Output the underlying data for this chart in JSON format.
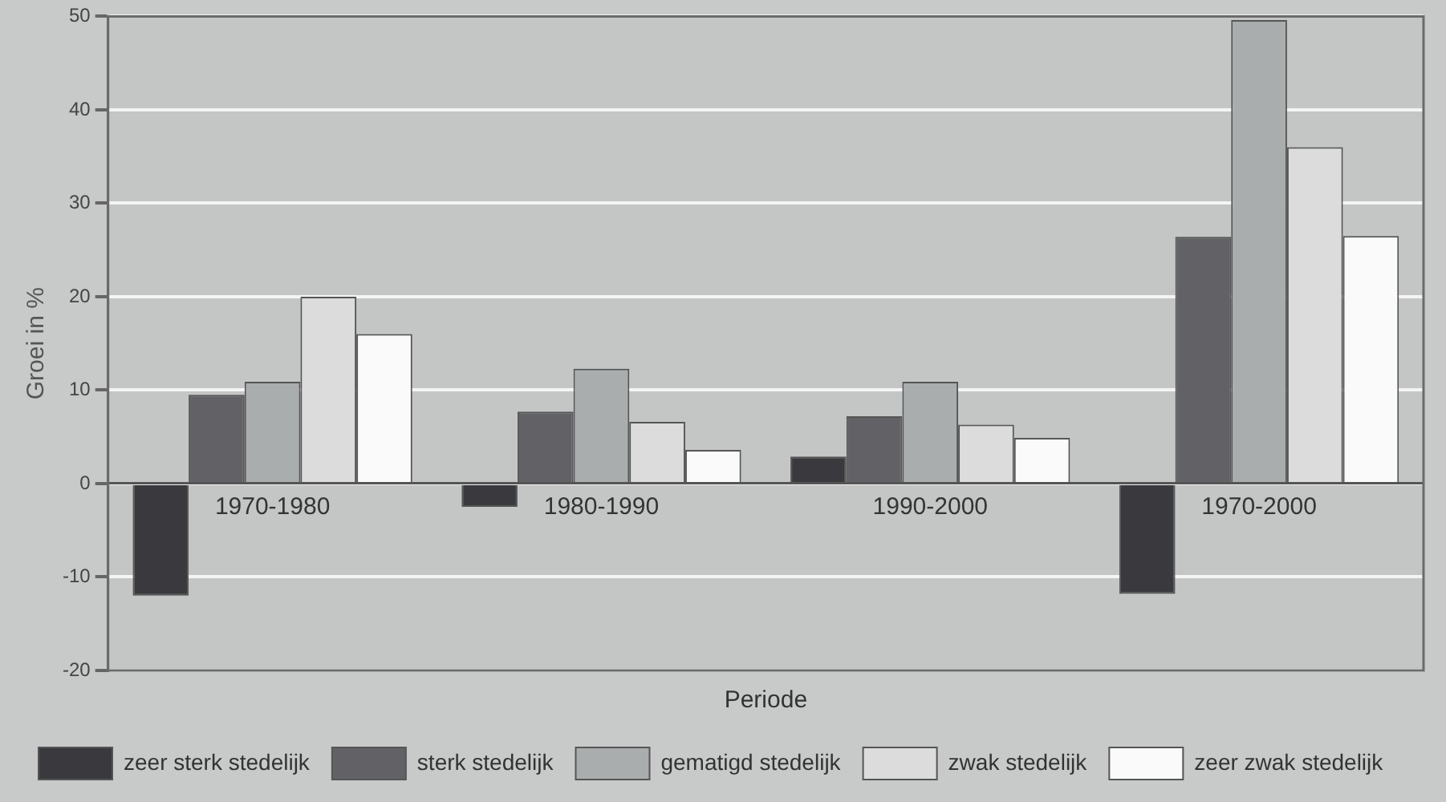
{
  "chart_data": {
    "type": "bar",
    "xlabel": "Periode",
    "ylabel": "Groei in %",
    "categories": [
      "1970-1980",
      "1980-1990",
      "1990-2000",
      "1970-2000"
    ],
    "series": [
      {
        "name": "zeer sterk stedelijk",
        "color": "#3a3a3e",
        "values": [
          -12,
          -2.5,
          2.9,
          -11.8
        ]
      },
      {
        "name": "sterk stedelijk",
        "color": "#626266",
        "values": [
          9.5,
          7.7,
          7.2,
          26.4
        ]
      },
      {
        "name": "gematigd stedelijk",
        "color": "#a9adad",
        "values": [
          10.9,
          12.3,
          10.9,
          49.6
        ]
      },
      {
        "name": "zwak stedelijk",
        "color": "#dcdcdc",
        "values": [
          20,
          6.6,
          6.3,
          36
        ]
      },
      {
        "name": "zeer zwak stedelijk",
        "color": "#fafafa",
        "values": [
          16,
          3.6,
          4.9,
          26.5
        ]
      }
    ],
    "ylim": [
      -20,
      50
    ],
    "yticks": [
      -20,
      -10,
      0,
      10,
      20,
      30,
      40,
      50
    ],
    "grid": "y",
    "legend": "bottom"
  }
}
